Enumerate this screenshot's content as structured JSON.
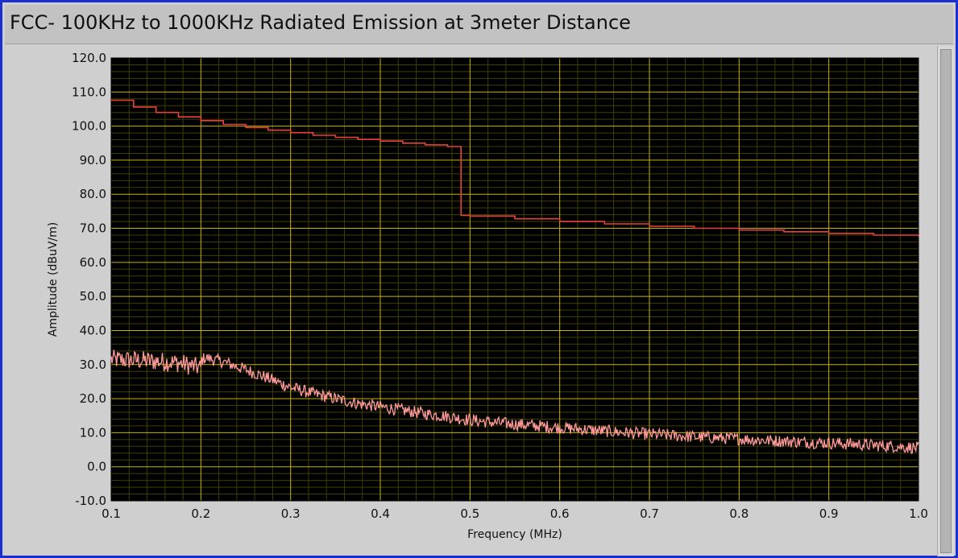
{
  "window": {
    "title": "FCC- 100KHz to 1000KHz Radiated Emission at 3meter Distance"
  },
  "colors": {
    "plot_background": "#000000",
    "grid_major": "#c8b400",
    "grid_minor": "#3f3f00",
    "limit_line": "#e8413a",
    "emission_trace": "#ff9a9a",
    "frame": "#cfcfcf"
  },
  "chart_data": {
    "type": "line",
    "xlabel": "Frequency (MHz)",
    "ylabel": "Amplitude (dBuV/m)",
    "xlim": [
      0.1,
      1.0
    ],
    "ylim": [
      -10,
      120
    ],
    "x_ticks": [
      "0.1",
      "0.2",
      "0.3",
      "0.4",
      "0.5",
      "0.6",
      "0.7",
      "0.8",
      "0.9",
      "1.0"
    ],
    "y_ticks": [
      "120.0",
      "110.0",
      "100.0",
      "90.0",
      "80.0",
      "70.0",
      "60.0",
      "50.0",
      "40.0",
      "30.0",
      "20.0",
      "10.0",
      "0.0",
      "-10.0"
    ],
    "grid": true,
    "legend": "none",
    "series": [
      {
        "role": "limit",
        "color": "#e8413a",
        "step": true,
        "x": [
          0.1,
          0.125,
          0.15,
          0.175,
          0.2,
          0.225,
          0.25,
          0.275,
          0.3,
          0.325,
          0.35,
          0.375,
          0.4,
          0.425,
          0.45,
          0.475,
          0.49,
          0.49,
          0.5,
          0.55,
          0.6,
          0.65,
          0.7,
          0.75,
          0.8,
          0.85,
          0.9,
          0.95,
          1.0
        ],
        "y": [
          107.6,
          105.6,
          104.0,
          102.7,
          101.6,
          100.5,
          99.6,
          98.8,
          98.1,
          97.3,
          96.7,
          96.1,
          95.6,
          95.0,
          94.5,
          94.0,
          93.8,
          73.8,
          73.6,
          72.8,
          72.0,
          71.3,
          70.6,
          70.0,
          69.5,
          69.0,
          68.5,
          68.0,
          67.6
        ]
      },
      {
        "role": "measurement",
        "color": "#ff9a9a",
        "x": [
          0.1,
          0.125,
          0.15,
          0.175,
          0.2,
          0.201,
          0.205,
          0.225,
          0.25,
          0.275,
          0.3,
          0.325,
          0.35,
          0.375,
          0.4,
          0.425,
          0.45,
          0.475,
          0.5,
          0.525,
          0.55,
          0.575,
          0.6,
          0.625,
          0.65,
          0.675,
          0.7,
          0.725,
          0.75,
          0.775,
          0.8,
          0.825,
          0.85,
          0.875,
          0.9,
          0.925,
          0.95,
          0.975,
          1.0
        ],
        "y": [
          31.5,
          31.3,
          31.0,
          30.5,
          29.0,
          31.5,
          32.0,
          30.8,
          28.5,
          26.0,
          23.3,
          21.5,
          20.0,
          18.6,
          17.6,
          16.6,
          15.6,
          14.8,
          13.7,
          13.0,
          12.5,
          12.0,
          11.5,
          11.0,
          10.5,
          10.0,
          9.6,
          9.2,
          8.8,
          8.5,
          8.2,
          7.8,
          7.5,
          7.2,
          7.0,
          6.7,
          6.3,
          6.0,
          5.5
        ],
        "noise_amplitude": 1.8
      }
    ]
  }
}
